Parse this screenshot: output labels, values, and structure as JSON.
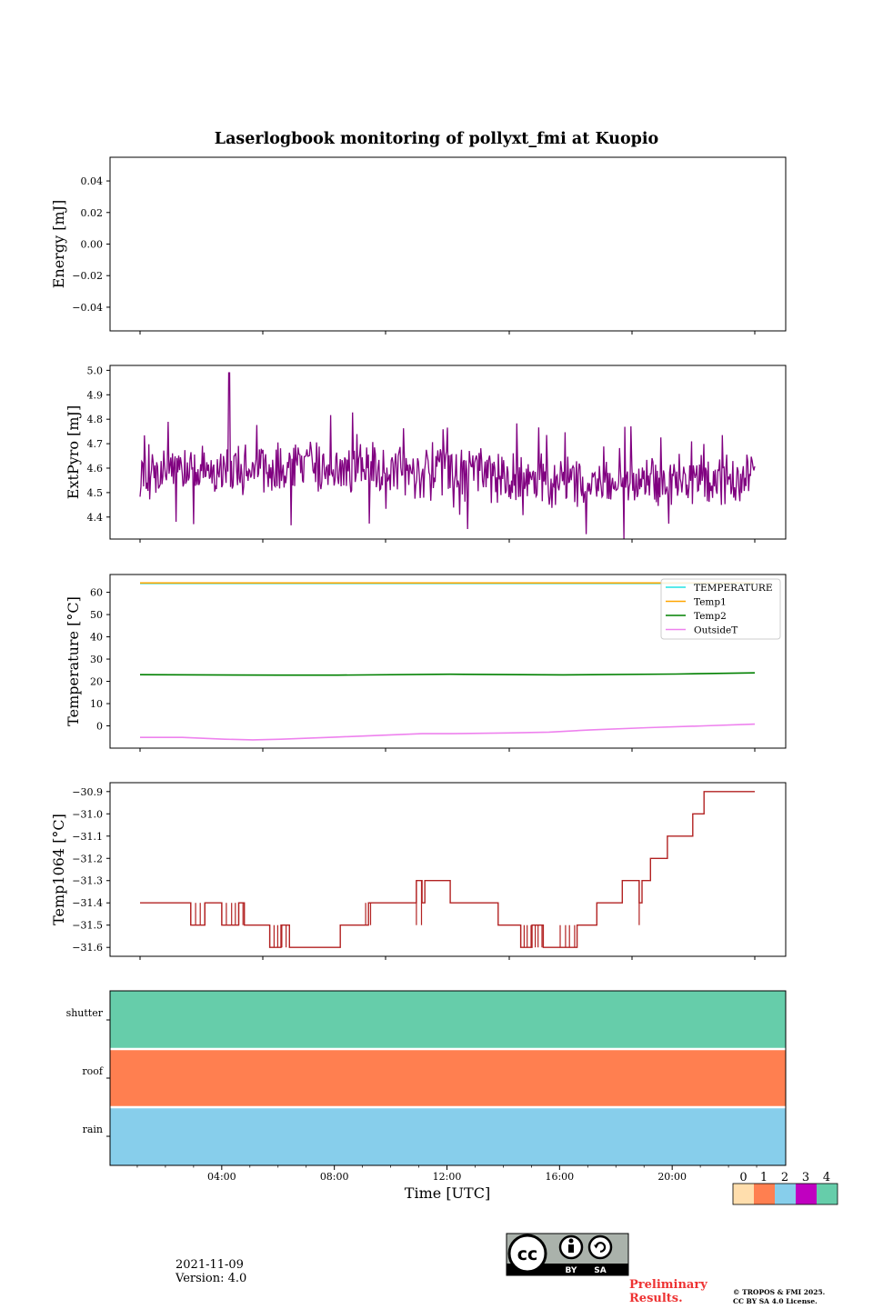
{
  "title": "Laserlogbook monitoring of pollyxt_fmi at Kuopio",
  "footer": {
    "date": "2021-11-09",
    "version": "Version: 4.0",
    "preliminary_line1": "Preliminary",
    "preliminary_line2": "Results.",
    "copyright_line1": "© TROPOS & FMI 2025.",
    "copyright_line2": "CC BY SA 4.0 License.",
    "cc_badge_by": "BY",
    "cc_badge_sa": "SA",
    "cc_badge_logo": "cc"
  },
  "chart_data": [
    {
      "type": "line",
      "id": "energy",
      "ylabel": "Energy [mJ]",
      "ylim": [
        -0.055,
        0.055
      ],
      "yticks": [
        -0.04,
        -0.02,
        0.0,
        0.02,
        0.04
      ],
      "ytick_labels": [
        "−0.04",
        "−0.02",
        "0.00",
        "0.02",
        "0.04"
      ],
      "series": []
    },
    {
      "type": "line",
      "id": "extpyro",
      "ylabel": "ExtPyro [mJ]",
      "ylim": [
        4.31,
        5.02
      ],
      "yticks": [
        4.4,
        4.5,
        4.6,
        4.7,
        4.8,
        4.9,
        5.0
      ],
      "ytick_labels": [
        "4.4",
        "4.5",
        "4.6",
        "4.7",
        "4.8",
        "4.9",
        "5.0"
      ],
      "x_range_hours": [
        1.0,
        22.8
      ],
      "series": [
        {
          "name": "ExtPyro",
          "color": "#800080",
          "mean": 4.58,
          "spread": 0.09,
          "spike": {
            "x": 4.2,
            "value": 4.99
          }
        }
      ]
    },
    {
      "type": "line",
      "id": "temperature",
      "ylabel": "Temperature [°C]",
      "ylim": [
        -10,
        68
      ],
      "yticks": [
        0,
        10,
        20,
        30,
        40,
        50,
        60
      ],
      "ytick_labels": [
        "0",
        "10",
        "20",
        "30",
        "40",
        "50",
        "60"
      ],
      "legend_position": "upper-right",
      "series": [
        {
          "name": "TEMPERATURE",
          "color": "#22e3e3",
          "x": [
            1.0,
            22.8
          ],
          "y": [
            64.0,
            64.0
          ]
        },
        {
          "name": "Temp1",
          "color": "#ffa500",
          "x": [
            1.0,
            22.8
          ],
          "y": [
            64.2,
            64.2
          ]
        },
        {
          "name": "Temp2",
          "color": "#008000",
          "x": [
            1.0,
            6.0,
            8.0,
            12.0,
            16.0,
            20.0,
            22.8
          ],
          "y": [
            23.0,
            22.8,
            22.8,
            23.2,
            22.9,
            23.3,
            23.8
          ]
        },
        {
          "name": "OutsideT",
          "color": "#ee82ee",
          "x": [
            1.0,
            2.5,
            4.0,
            5.0,
            6.0,
            8.0,
            10.0,
            11.0,
            12.0,
            14.0,
            15.5,
            17.0,
            19.0,
            21.0,
            22.8
          ],
          "y": [
            -5.2,
            -5.2,
            -6.0,
            -6.3,
            -6.0,
            -5.0,
            -4.0,
            -3.5,
            -3.5,
            -3.2,
            -2.8,
            -1.8,
            -0.8,
            0.0,
            0.8
          ]
        }
      ]
    },
    {
      "type": "line",
      "id": "temp1064",
      "ylabel": "Temp1064 [°C]",
      "ylim": [
        -31.64,
        -30.86
      ],
      "yticks": [
        -31.6,
        -31.5,
        -31.4,
        -31.3,
        -31.2,
        -31.1,
        -31.0,
        -30.9
      ],
      "ytick_labels": [
        "−31.6",
        "−31.5",
        "−31.4",
        "−31.3",
        "−31.2",
        "−31.1",
        "−31.0",
        "−30.9"
      ],
      "series": [
        {
          "name": "Temp1064",
          "color": "#b22222",
          "steps": [
            [
              1.0,
              -31.4
            ],
            [
              2.8,
              -31.4
            ],
            [
              2.8,
              -31.5
            ],
            [
              3.3,
              -31.5
            ],
            [
              3.3,
              -31.4
            ],
            [
              3.9,
              -31.4
            ],
            [
              3.9,
              -31.5
            ],
            [
              4.5,
              -31.5
            ],
            [
              4.5,
              -31.4
            ],
            [
              4.7,
              -31.4
            ],
            [
              4.7,
              -31.5
            ],
            [
              5.6,
              -31.5
            ],
            [
              5.6,
              -31.6
            ],
            [
              6.0,
              -31.6
            ],
            [
              6.0,
              -31.5
            ],
            [
              6.3,
              -31.5
            ],
            [
              6.3,
              -31.6
            ],
            [
              8.1,
              -31.6
            ],
            [
              8.1,
              -31.5
            ],
            [
              9.1,
              -31.5
            ],
            [
              9.1,
              -31.4
            ],
            [
              10.8,
              -31.4
            ],
            [
              10.8,
              -31.3
            ],
            [
              11.0,
              -31.3
            ],
            [
              11.0,
              -31.4
            ],
            [
              11.1,
              -31.4
            ],
            [
              11.1,
              -31.3
            ],
            [
              12.0,
              -31.3
            ],
            [
              12.0,
              -31.4
            ],
            [
              13.7,
              -31.4
            ],
            [
              13.7,
              -31.5
            ],
            [
              14.5,
              -31.5
            ],
            [
              14.5,
              -31.6
            ],
            [
              14.9,
              -31.6
            ],
            [
              14.9,
              -31.5
            ],
            [
              15.3,
              -31.5
            ],
            [
              15.3,
              -31.6
            ],
            [
              16.5,
              -31.6
            ],
            [
              16.5,
              -31.5
            ],
            [
              17.2,
              -31.5
            ],
            [
              17.2,
              -31.4
            ],
            [
              18.1,
              -31.4
            ],
            [
              18.1,
              -31.3
            ],
            [
              18.7,
              -31.3
            ],
            [
              18.7,
              -31.4
            ],
            [
              18.8,
              -31.4
            ],
            [
              18.8,
              -31.3
            ],
            [
              19.1,
              -31.3
            ],
            [
              19.1,
              -31.2
            ],
            [
              19.7,
              -31.2
            ],
            [
              19.7,
              -31.1
            ],
            [
              20.6,
              -31.1
            ],
            [
              20.6,
              -31.0
            ],
            [
              21.0,
              -31.0
            ],
            [
              21.0,
              -30.9
            ],
            [
              22.8,
              -30.9
            ]
          ],
          "noisy_segments": [
            [
              2.8,
              3.3
            ],
            [
              3.9,
              4.7
            ],
            [
              5.6,
              6.3
            ],
            [
              9.0,
              9.2
            ],
            [
              10.8,
              11.1
            ],
            [
              14.5,
              15.3
            ],
            [
              15.9,
              16.5
            ],
            [
              18.7,
              18.8
            ]
          ]
        }
      ]
    },
    {
      "type": "heatmap",
      "id": "status",
      "rows": [
        "rain",
        "roof",
        "shutter"
      ],
      "row_values": [
        2,
        1,
        4
      ],
      "xlabel": "Time [UTC]",
      "xlim_hours": [
        0,
        24
      ],
      "xticks": [
        4,
        8,
        12,
        16,
        20
      ],
      "xtick_labels": [
        "04:00",
        "08:00",
        "12:00",
        "16:00",
        "20:00"
      ],
      "colorbar": {
        "ticks": [
          "0",
          "1",
          "2",
          "3",
          "4"
        ],
        "colors": [
          "#ffdead",
          "#ff7f50",
          "#87ceeb",
          "#c000c0",
          "#66cdaa"
        ]
      }
    }
  ]
}
